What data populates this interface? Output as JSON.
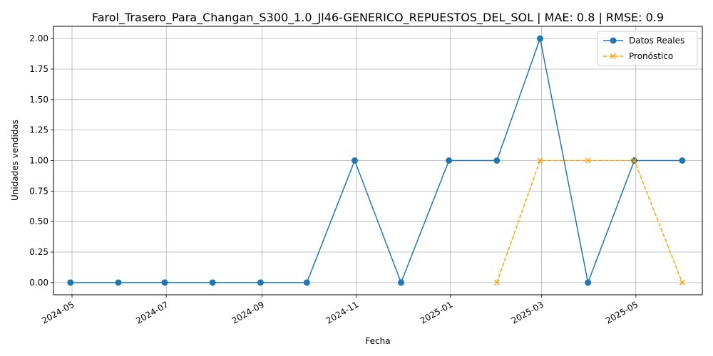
{
  "chart_data": {
    "type": "line",
    "title": "Farol_Trasero_Para_Changan_S300_1.0_Jl46-GENERICO_REPUESTOS_DEL_SOL | MAE: 0.8 | RMSE: 0.9",
    "xlabel": "Fecha",
    "ylabel": "Unidades vendidas",
    "grid": true,
    "legend_position": "top-right",
    "x_range": [
      "2024-04-19",
      "2025-06-13"
    ],
    "ylim": [
      -0.1,
      2.1
    ],
    "x_ticks": [
      "2024-05",
      "2024-07",
      "2024-09",
      "2024-11",
      "2025-01",
      "2025-03",
      "2025-05"
    ],
    "y_ticks": [
      "0.00",
      "0.25",
      "0.50",
      "0.75",
      "1.00",
      "1.25",
      "1.50",
      "1.75",
      "2.00"
    ],
    "series": [
      {
        "name": "Datos Reales",
        "color": "#1f77b4",
        "style": "solid",
        "marker": "circle",
        "x": [
          "2024-04-30",
          "2024-05-31",
          "2024-06-30",
          "2024-07-31",
          "2024-08-31",
          "2024-09-30",
          "2024-10-31",
          "2024-11-30",
          "2024-12-31",
          "2025-01-31",
          "2025-02-28",
          "2025-03-31",
          "2025-04-30",
          "2025-05-31"
        ],
        "values": [
          0,
          0,
          0,
          0,
          0,
          0,
          1,
          0,
          1,
          1,
          2,
          0,
          1,
          1
        ]
      },
      {
        "name": "Pronóstico",
        "color": "#ffa500",
        "style": "dashed",
        "marker": "x",
        "x": [
          "2025-01-31",
          "2025-02-28",
          "2025-03-31",
          "2025-04-30",
          "2025-05-31"
        ],
        "values": [
          0,
          1,
          1,
          1,
          0
        ]
      }
    ]
  }
}
